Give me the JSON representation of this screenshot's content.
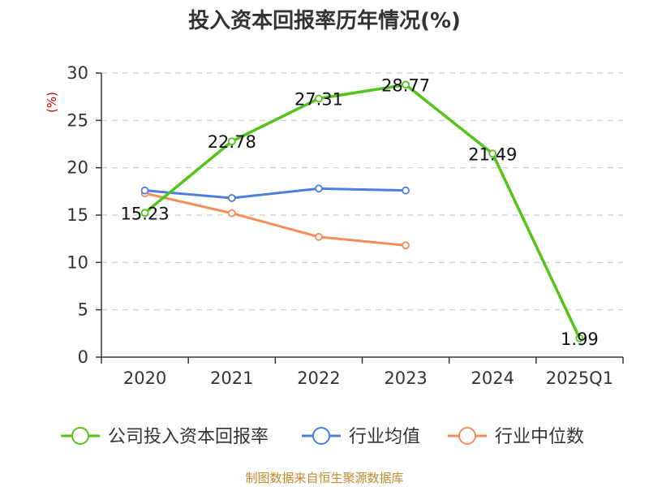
{
  "title": "投入资本回报率历年情况(%)",
  "unit_label": "(%)",
  "source": "制图数据来自恒生聚源数据库",
  "chart_data": {
    "type": "line",
    "title": "投入资本回报率历年情况(%)",
    "ylabel": "(%)",
    "xlabel": "",
    "categories": [
      "2020",
      "2021",
      "2022",
      "2023",
      "2024",
      "2025Q1"
    ],
    "ylim": [
      0,
      30
    ],
    "yticks": [
      0,
      5,
      10,
      15,
      20,
      25,
      30
    ],
    "grid": "horizontal-dashed",
    "legend_position": "bottom",
    "series": [
      {
        "name": "公司投入资本回报率",
        "color": "#52c41a",
        "values": [
          15.23,
          22.78,
          27.31,
          28.77,
          21.49,
          1.99
        ],
        "labels": [
          "15.23",
          "22.78",
          "27.31",
          "28.77",
          "21.49",
          "1.99"
        ]
      },
      {
        "name": "行业均值",
        "color": "#4a7fe0",
        "values": [
          17.6,
          16.8,
          17.8,
          17.6,
          null,
          null
        ]
      },
      {
        "name": "行业中位数",
        "color": "#f58c5a",
        "values": [
          17.3,
          15.2,
          12.7,
          11.8,
          null,
          null
        ]
      }
    ]
  }
}
